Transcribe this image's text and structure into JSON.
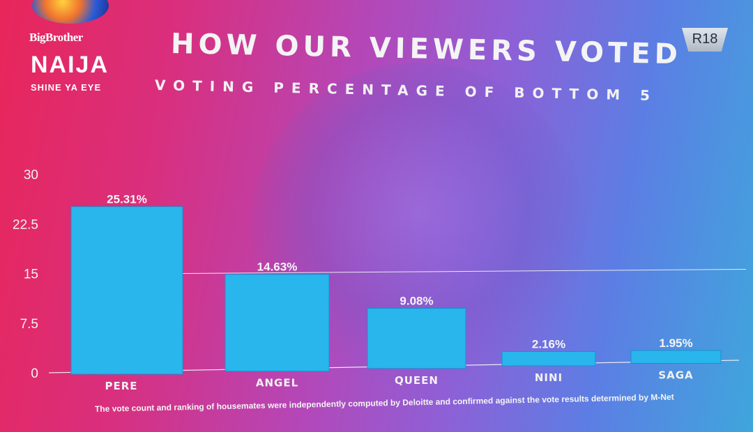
{
  "logo": {
    "line1": "BigBrother",
    "line2": "NAIJA",
    "line3": "SHINE YA EYE"
  },
  "header": {
    "title": "HOW OUR VIEWERS VOTED",
    "subtitle": "VOTING PERCENTAGE OF BOTTOM 5",
    "rating_badge": "R18"
  },
  "chart_data": {
    "type": "bar",
    "title": "",
    "categories": [
      "PERE",
      "ANGEL",
      "QUEEN",
      "NINI",
      "SAGA"
    ],
    "values": [
      25.31,
      14.63,
      9.08,
      2.16,
      1.95
    ],
    "value_labels": [
      "25.31%",
      "14.63%",
      "9.08%",
      "2.16%",
      "1.95%"
    ],
    "yticks": [
      "0",
      "7.5",
      "15",
      "22.5",
      "30"
    ],
    "ylim": [
      0,
      30
    ],
    "xlabel": "",
    "ylabel": "",
    "bar_color": "#29b6ec",
    "grid": false
  },
  "footnote": "The vote count and ranking of housemates were independently computed by Deloitte and confirmed against the vote results determined by M-Net"
}
